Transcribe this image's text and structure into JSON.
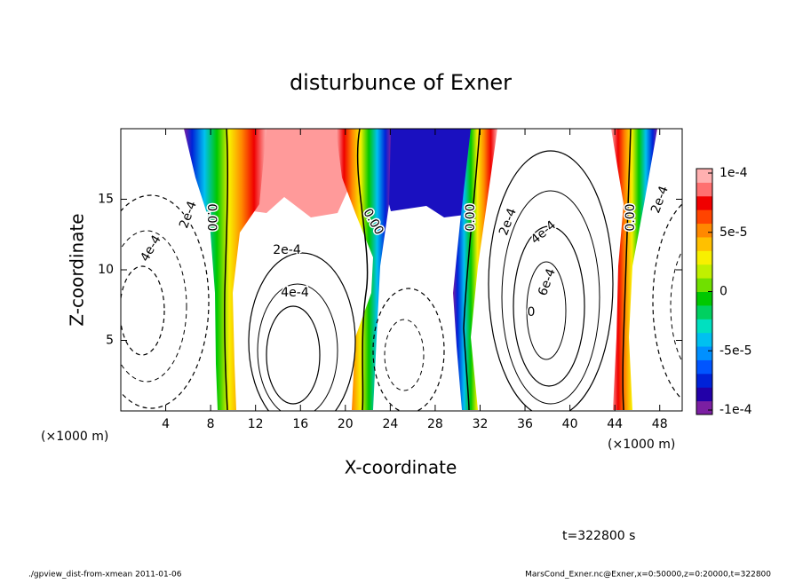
{
  "chart_data": {
    "type": "contour",
    "title": "disturbunce of Exner",
    "x_label": "X-coordinate",
    "y_label": "Z-coordinate",
    "x_unit": "(×1000 m)",
    "xlim": [
      0,
      50
    ],
    "ylim": [
      0,
      20
    ],
    "xticks": [
      4,
      8,
      12,
      16,
      20,
      24,
      28,
      32,
      36,
      40,
      44,
      48
    ],
    "yticks": [
      5,
      10,
      15
    ],
    "contour_labels": [
      "2e-4",
      "4e-4",
      "0.00",
      "2e-4",
      "4e-4",
      "0.00",
      "0.00",
      "2e-4",
      "4e-4",
      "6e-4",
      "0",
      "0.00",
      "2e-4"
    ],
    "colorbar": {
      "lim": [
        -0.0001,
        0.0001
      ],
      "ticks": [
        {
          "value": 0.0001,
          "label": "1e-4"
        },
        {
          "value": 5e-05,
          "label": "5e-5"
        },
        0,
        {
          "value": -5e-05,
          "label": "-5e-5"
        },
        {
          "value": -0.0001,
          "label": "-1e-4"
        }
      ],
      "colors": [
        "#7b1fa2",
        "#2200a8",
        "#0022d8",
        "#0055ff",
        "#0090ff",
        "#00c0f0",
        "#00e0c0",
        "#00d060",
        "#00c800",
        "#70e000",
        "#c0f000",
        "#f8f000",
        "#ffc000",
        "#ff8800",
        "#ff4400",
        "#f00000",
        "#ff7070",
        "#ffb0b0"
      ]
    },
    "time_label": "t=322800 s",
    "footer_left": "./gpview_dist-from-xmean  2011-01-06",
    "footer_right": "MarsCond_Exner.nc@Exner,x=0:50000,z=0:20000,t=322800"
  }
}
